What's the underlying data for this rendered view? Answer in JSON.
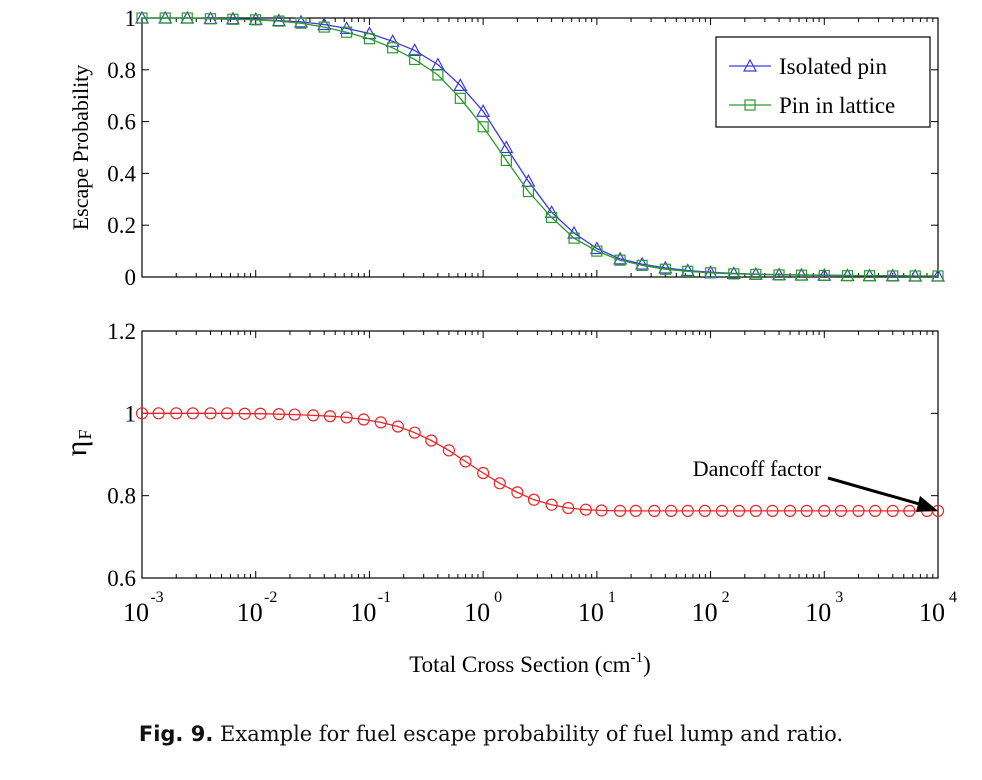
{
  "chart_data": [
    {
      "type": "line",
      "xscale": "log",
      "xlim": [
        0.001,
        10000
      ],
      "ylim": [
        0,
        1
      ],
      "ylabel": "Escape Probability",
      "yticks": [
        "0",
        "0.2",
        "0.4",
        "0.6",
        "0.8",
        "1"
      ],
      "legend_position": "top-right",
      "grid": false,
      "x": [
        0.001,
        0.0016,
        0.0025,
        0.004,
        0.0063,
        0.01,
        0.016,
        0.025,
        0.04,
        0.063,
        0.1,
        0.16,
        0.25,
        0.4,
        0.63,
        1,
        1.6,
        2.5,
        4,
        6.3,
        10,
        16,
        25,
        40,
        63,
        100,
        160,
        250,
        400,
        630,
        1000,
        1600,
        2500,
        4000,
        6300,
        10000
      ],
      "series": [
        {
          "name": "Isolated pin",
          "color": "#3a3adf",
          "marker": "triangle",
          "values": [
            1.0,
            1.0,
            1.0,
            0.998,
            0.997,
            0.995,
            0.99,
            0.985,
            0.975,
            0.96,
            0.94,
            0.91,
            0.875,
            0.82,
            0.74,
            0.64,
            0.5,
            0.37,
            0.25,
            0.17,
            0.11,
            0.07,
            0.05,
            0.035,
            0.025,
            0.018,
            0.014,
            0.011,
            0.009,
            0.008,
            0.007,
            0.006,
            0.005,
            0.005,
            0.004,
            0.004
          ]
        },
        {
          "name": "Pin in lattice",
          "color": "#2d9a2d",
          "marker": "square",
          "values": [
            1.0,
            1.0,
            1.0,
            0.997,
            0.995,
            0.993,
            0.988,
            0.98,
            0.965,
            0.945,
            0.92,
            0.885,
            0.84,
            0.78,
            0.69,
            0.58,
            0.45,
            0.33,
            0.23,
            0.15,
            0.1,
            0.065,
            0.045,
            0.03,
            0.022,
            0.016,
            0.012,
            0.01,
            0.008,
            0.007,
            0.006,
            0.005,
            0.005,
            0.004,
            0.004,
            0.004
          ]
        }
      ]
    },
    {
      "type": "line",
      "xscale": "log",
      "xlim": [
        0.001,
        10000
      ],
      "ylim": [
        0.6,
        1.2
      ],
      "ylabel": "η",
      "ylabel_sub": "F",
      "yticks": [
        "0.6",
        "0.8",
        "1",
        "1.2"
      ],
      "xlabel": "Total Cross Section (cm",
      "xlabel_sup": "-1",
      "xlabel_tail": ")",
      "xtick_base": "10",
      "xtick_exponents": [
        "-3",
        "-2",
        "-1",
        "0",
        "1",
        "2",
        "3",
        "4"
      ],
      "grid": false,
      "annotation": {
        "text": "Dancoff factor",
        "points_to": [
          10000,
          0.763
        ]
      },
      "x": [
        0.001,
        0.0014,
        0.002,
        0.0028,
        0.004,
        0.0056,
        0.008,
        0.011,
        0.016,
        0.022,
        0.032,
        0.045,
        0.063,
        0.089,
        0.126,
        0.178,
        0.25,
        0.35,
        0.5,
        0.7,
        1,
        1.4,
        2,
        2.8,
        4,
        5.6,
        8,
        11,
        16,
        22,
        32,
        45,
        63,
        89,
        126,
        178,
        250,
        350,
        500,
        700,
        1000,
        1400,
        2000,
        2800,
        4000,
        5600,
        8000,
        10000
      ],
      "series": [
        {
          "name": "",
          "color": "#e8262a",
          "marker": "circle",
          "values": [
            1.0,
            1.0,
            1.0,
            1.0,
            1.0,
            1.0,
            0.999,
            0.999,
            0.998,
            0.997,
            0.995,
            0.993,
            0.99,
            0.985,
            0.978,
            0.968,
            0.953,
            0.934,
            0.91,
            0.883,
            0.855,
            0.83,
            0.808,
            0.79,
            0.778,
            0.77,
            0.766,
            0.764,
            0.763,
            0.763,
            0.763,
            0.763,
            0.763,
            0.763,
            0.763,
            0.763,
            0.763,
            0.763,
            0.763,
            0.763,
            0.763,
            0.763,
            0.763,
            0.763,
            0.763,
            0.763,
            0.763,
            0.763
          ]
        }
      ]
    }
  ],
  "caption": {
    "label": "Fig. 9.",
    "text": "Example for fuel escape probability of fuel lump and ratio."
  }
}
